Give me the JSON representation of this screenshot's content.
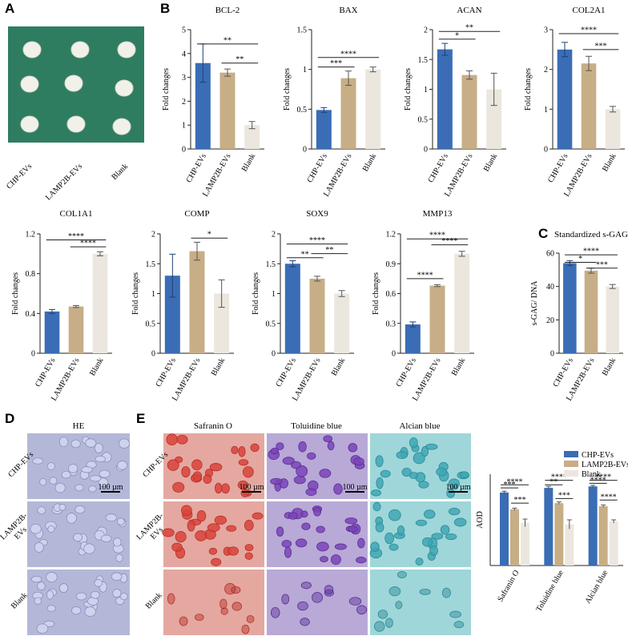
{
  "colors": {
    "chp": "#3a6db5",
    "lamp": "#c7ae86",
    "blank": "#ece7de",
    "green_bg": "#2f7d61",
    "he_bg": "#b4b8d8",
    "saf_bg": "#e4a8a0",
    "tol_bg": "#b8a9d6",
    "alc_bg": "#9fd6d9"
  },
  "panels": {
    "A": "A",
    "B": "B",
    "C": "C",
    "D": "D",
    "E": "E"
  },
  "photoA": {
    "labels": [
      "CHP-EVs",
      "LAMP2B-EVs",
      "Blank"
    ]
  },
  "photoD": {
    "title": "HE",
    "rows": [
      "CHP-EVs",
      "LAMP2B-EVs",
      "Blank"
    ],
    "rows_display": [
      "CHP-EVs",
      "LAMP2B-\nEVs",
      "Blank"
    ],
    "scale": "100 µm"
  },
  "photoE": {
    "titles": [
      "Safranin O",
      "Toluidine blue",
      "Alcian blue"
    ],
    "scale": "100 µm"
  },
  "chart_data": [
    {
      "id": "bcl2",
      "type": "bar",
      "title": "BCL-2",
      "ylabel": "Fold changes",
      "categories": [
        "CHP-EVs",
        "LAMP2B-EVs",
        "Blank"
      ],
      "values": [
        3.6,
        3.2,
        1.0
      ],
      "errors": [
        0.8,
        0.15,
        0.15
      ],
      "ylim": [
        0,
        5
      ],
      "yticks": [
        "0",
        "1",
        "2",
        "3",
        "4",
        "5"
      ],
      "sig": [
        {
          "from": 0,
          "to": 2,
          "label": "**",
          "y": 4.4
        },
        {
          "from": 1,
          "to": 2,
          "label": "**",
          "y": 3.6
        }
      ]
    },
    {
      "id": "bax",
      "type": "bar",
      "title": "BAX",
      "ylabel": "Fold changes",
      "categories": [
        "CHP-EVs",
        "LAMP2B-EVs",
        "Blank"
      ],
      "values": [
        0.49,
        0.89,
        1.0
      ],
      "errors": [
        0.03,
        0.09,
        0.03
      ],
      "ylim": [
        0,
        1.5
      ],
      "yticks": [
        "0",
        "0.5",
        "1",
        "1.5"
      ],
      "sig": [
        {
          "from": 0,
          "to": 2,
          "label": "****",
          "y": 1.15
        },
        {
          "from": 0,
          "to": 1,
          "label": "***",
          "y": 1.03
        }
      ]
    },
    {
      "id": "acan",
      "type": "bar",
      "title": "ACAN",
      "ylabel": "Fold changes",
      "categories": [
        "CHP-EVs",
        "LAMP2B-EVs",
        "Blank"
      ],
      "values": [
        1.67,
        1.24,
        1.0
      ],
      "errors": [
        0.1,
        0.07,
        0.27
      ],
      "ylim": [
        0,
        2
      ],
      "yticks": [
        "0",
        "0.5",
        "1",
        "1.5",
        "2"
      ],
      "sig": [
        {
          "from": 0,
          "to": 2,
          "label": "**",
          "y": 1.97
        },
        {
          "from": 0,
          "to": 1,
          "label": "*",
          "y": 1.84
        }
      ]
    },
    {
      "id": "col2a1",
      "type": "bar",
      "title": "COL2A1",
      "ylabel": "Fold changes",
      "categories": [
        "CHP-EVs",
        "LAMP2B-EVs",
        "Blank"
      ],
      "values": [
        2.5,
        2.15,
        1.0
      ],
      "errors": [
        0.18,
        0.18,
        0.07
      ],
      "ylim": [
        0,
        3
      ],
      "yticks": [
        "0",
        "1",
        "2",
        "3"
      ],
      "sig": [
        {
          "from": 0,
          "to": 2,
          "label": "****",
          "y": 2.9
        },
        {
          "from": 1,
          "to": 2,
          "label": "***",
          "y": 2.5
        }
      ]
    },
    {
      "id": "col1a1",
      "type": "bar",
      "title": "COL1A1",
      "ylabel": "Fold changes",
      "categories": [
        "CHP-EVs",
        "LAMP2B-EVs",
        "Blank"
      ],
      "values": [
        0.42,
        0.47,
        1.0
      ],
      "errors": [
        0.02,
        0.01,
        0.02
      ],
      "ylim": [
        0,
        1.2
      ],
      "yticks": [
        "0",
        "0.4",
        "0.8",
        "1.2"
      ],
      "sig": [
        {
          "from": 0,
          "to": 2,
          "label": "****",
          "y": 1.14
        },
        {
          "from": 1,
          "to": 2,
          "label": "****",
          "y": 1.07
        }
      ]
    },
    {
      "id": "comp",
      "type": "bar",
      "title": "COMP",
      "ylabel": "Fold changes",
      "categories": [
        "CHP-EVs",
        "LAMP2B-EVs",
        "Blank"
      ],
      "values": [
        1.3,
        1.71,
        1.0
      ],
      "errors": [
        0.36,
        0.15,
        0.23
      ],
      "ylim": [
        0,
        2
      ],
      "yticks": [
        "0",
        "0.5",
        "1",
        "1.5",
        "2"
      ],
      "sig": [
        {
          "from": 1,
          "to": 2,
          "label": "*",
          "y": 1.93
        }
      ]
    },
    {
      "id": "sox9",
      "type": "bar",
      "title": "SOX9",
      "ylabel": "Fold changes",
      "categories": [
        "CHP-EVs",
        "LAMP2B-EVs",
        "Blank"
      ],
      "values": [
        1.5,
        1.25,
        1.0
      ],
      "errors": [
        0.05,
        0.04,
        0.05
      ],
      "ylim": [
        0,
        2
      ],
      "yticks": [
        "0",
        "0.5",
        "1",
        "1.5",
        "2"
      ],
      "sig": [
        {
          "from": 0,
          "to": 2,
          "label": "****",
          "y": 1.83
        },
        {
          "from": 1,
          "to": 2,
          "label": "**",
          "y": 1.67
        },
        {
          "from": 0,
          "to": 1,
          "label": "**",
          "y": 1.6
        }
      ]
    },
    {
      "id": "mmp13",
      "type": "bar",
      "title": "MMP13",
      "ylabel": "Fold changes",
      "categories": [
        "CHP-EVs",
        "LAMP2B-EVs",
        "Blank"
      ],
      "values": [
        0.29,
        0.68,
        1.0
      ],
      "errors": [
        0.025,
        0.01,
        0.025
      ],
      "ylim": [
        0,
        1.2
      ],
      "yticks": [
        "0",
        "0.3",
        "0.6",
        "0.9",
        "1.2"
      ],
      "sig": [
        {
          "from": 0,
          "to": 2,
          "label": "****",
          "y": 1.15
        },
        {
          "from": 1,
          "to": 2,
          "label": "****",
          "y": 1.09
        },
        {
          "from": 0,
          "to": 1,
          "label": "****",
          "y": 0.75
        }
      ]
    },
    {
      "id": "sgag",
      "type": "bar",
      "title": "Standardized s-GAG",
      "ylabel": "s-GAG/ DNA",
      "categories": [
        "CHP-EVs",
        "LAMP2B-EVs",
        "Blank"
      ],
      "values": [
        54,
        49.5,
        40
      ],
      "errors": [
        1.5,
        1.5,
        1.2
      ],
      "ylim": [
        0,
        60
      ],
      "yticks": [
        "0",
        "20",
        "40",
        "60"
      ],
      "sig": [
        {
          "from": 0,
          "to": 2,
          "label": "****",
          "y": 59
        },
        {
          "from": 0,
          "to": 1,
          "label": "*",
          "y": 54.5
        },
        {
          "from": 1,
          "to": 2,
          "label": "***",
          "y": 51
        }
      ]
    },
    {
      "id": "aod",
      "type": "bar",
      "title": "",
      "ylabel": "AOD",
      "categories": [
        "Safranin O",
        "Toluidine blue",
        "Alcian blue"
      ],
      "legend": [
        "CHP-EVs",
        "LAMP2B-EVs",
        "Blank"
      ],
      "series": [
        {
          "name": "CHP-EVs",
          "values": [
            0.48,
            0.51,
            0.52
          ],
          "errors": [
            0.008,
            0.01,
            0.007
          ]
        },
        {
          "name": "LAMP2B-EVs",
          "values": [
            0.37,
            0.41,
            0.39
          ],
          "errors": [
            0.007,
            0.008,
            0.008
          ]
        },
        {
          "name": "Blank",
          "values": [
            0.28,
            0.27,
            0.29
          ],
          "errors": [
            0.025,
            0.03,
            0.01
          ]
        }
      ],
      "ylim": [
        0,
        0.6
      ],
      "sig": [
        {
          "g": 0,
          "from": 0,
          "to": 2,
          "label": "****",
          "y": 0.53
        },
        {
          "g": 0,
          "from": 0,
          "to": 1,
          "label": "***",
          "y": 0.51
        },
        {
          "g": 0,
          "from": 1,
          "to": 2,
          "label": "***",
          "y": 0.41
        },
        {
          "g": 1,
          "from": 0,
          "to": 2,
          "label": "****",
          "y": 0.56
        },
        {
          "g": 1,
          "from": 0,
          "to": 1,
          "label": "**",
          "y": 0.53
        },
        {
          "g": 1,
          "from": 1,
          "to": 2,
          "label": "***",
          "y": 0.44
        },
        {
          "g": 2,
          "from": 0,
          "to": 2,
          "label": "****",
          "y": 0.56
        },
        {
          "g": 2,
          "from": 0,
          "to": 1,
          "label": "****",
          "y": 0.54
        },
        {
          "g": 2,
          "from": 1,
          "to": 2,
          "label": "****",
          "y": 0.43
        }
      ]
    }
  ]
}
